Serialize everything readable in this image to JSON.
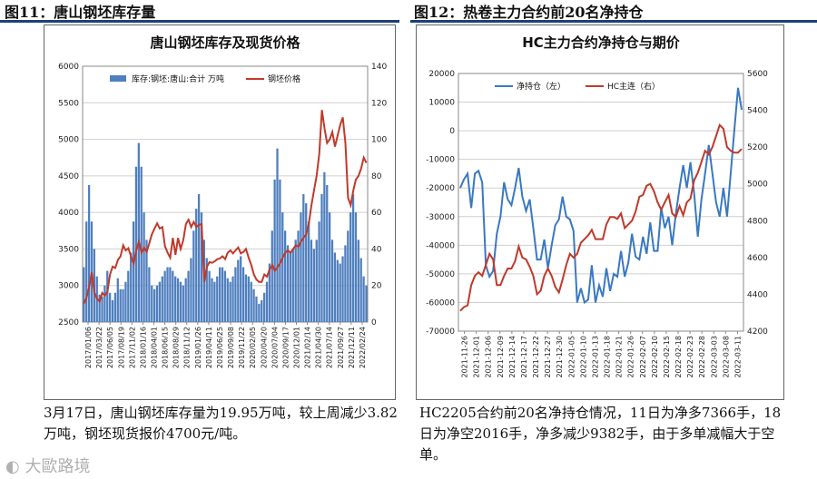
{
  "headers": {
    "left": "图11：唐山钢坯库存量",
    "right": "图12：热卷主力合约前20名净持仓"
  },
  "captions": {
    "left": "3月17日，唐山钢坯库存量为19.95万吨，较上周减少3.82万吨，钢坯现货报价4700元/吨。",
    "right": "HC2205合约前20名净持仓情况，11日为净多7366手，18日为净空2016手，净多减少9382手，由于多单减幅大于空单。"
  },
  "watermark": "大歐路境",
  "colors": {
    "bar": "#4f7fbf",
    "line_red": "#c0392b",
    "line_blue": "#3a78c2",
    "accent_rule": "#1d3f7a"
  },
  "chart_data": [
    {
      "type": "bar+line",
      "title": "唐山钢坯库存及现货价格",
      "legend": [
        "库存:钢坯:唐山:合计 万吨",
        "钢坯价格"
      ],
      "legend_placement": "top",
      "y_left": {
        "ylim": [
          2500,
          6000
        ],
        "ticks": [
          2500,
          3000,
          3500,
          4000,
          4500,
          5000,
          5500,
          6000
        ]
      },
      "y_right": {
        "ylim": [
          0,
          140
        ],
        "ticks": [
          0,
          20,
          40,
          60,
          80,
          100,
          120,
          140
        ]
      },
      "x_tick_labels": [
        "2017/01/06",
        "2017/03/22",
        "2017/06/05",
        "2017/08/19",
        "2017/11/02",
        "2018/01/16",
        "2018/04/01",
        "2018/06/15",
        "2018/08/29",
        "2018/11/12",
        "2019/01/26",
        "2019/04/11",
        "2019/06/25",
        "2019/09/08",
        "2019/11/22",
        "2020/02/05",
        "2020/04/20",
        "2020/07/04",
        "2020/09/17",
        "2020/12/01",
        "2021/02/14",
        "2021/04/30",
        "2021/07/14",
        "2021/09/27",
        "2021/12/11",
        "2022/02/24"
      ],
      "series": [
        {
          "name": "库存:钢坯:唐山:合计 万吨",
          "axis": "right",
          "kind": "bar",
          "values": [
            30,
            55,
            75,
            55,
            40,
            25,
            15,
            14,
            20,
            28,
            16,
            12,
            16,
            24,
            18,
            18,
            22,
            28,
            38,
            55,
            85,
            98,
            85,
            60,
            45,
            30,
            20,
            18,
            20,
            22,
            25,
            28,
            30,
            30,
            28,
            25,
            24,
            22,
            20,
            24,
            28,
            35,
            50,
            62,
            70,
            60,
            45,
            35,
            28,
            24,
            22,
            25,
            30,
            30,
            28,
            24,
            22,
            25,
            30,
            34,
            36,
            30,
            26,
            25,
            22,
            18,
            14,
            10,
            12,
            16,
            22,
            32,
            50,
            78,
            95,
            78,
            60,
            50,
            42,
            38,
            40,
            45,
            50,
            60,
            70,
            65,
            55,
            45,
            40,
            45,
            55,
            70,
            82,
            75,
            60,
            45,
            38,
            34,
            32,
            36,
            42,
            50,
            60,
            70,
            60,
            45,
            35,
            25,
            20
          ]
        },
        {
          "name": "钢坯价格",
          "axis": "left",
          "kind": "line",
          "values": [
            2750,
            2830,
            2980,
            3180,
            2900,
            2820,
            2780,
            2900,
            2860,
            2920,
            3150,
            3260,
            3240,
            3350,
            3400,
            3550,
            3480,
            3510,
            3400,
            3300,
            3480,
            3600,
            3450,
            3520,
            3460,
            3580,
            3700,
            3780,
            3850,
            3780,
            3800,
            3540,
            3450,
            3380,
            3650,
            3420,
            3650,
            3500,
            3620,
            3840,
            3900,
            3800,
            3870,
            3800,
            3830,
            3840,
            3050,
            3250,
            3320,
            3310,
            3330,
            3360,
            3370,
            3400,
            3360,
            3450,
            3480,
            3440,
            3480,
            3520,
            3440,
            3460,
            3500,
            3380,
            3280,
            3150,
            3080,
            3050,
            3050,
            3150,
            3120,
            3220,
            3280,
            3200,
            3250,
            3300,
            3380,
            3450,
            3480,
            3450,
            3500,
            3550,
            3530,
            3600,
            3650,
            3700,
            3850,
            4100,
            4300,
            4500,
            4800,
            5400,
            5150,
            4950,
            5000,
            5100,
            4900,
            5050,
            5200,
            5300,
            4950,
            4200,
            4100,
            4300,
            4450,
            4500,
            4600,
            4750,
            4680
          ]
        }
      ]
    },
    {
      "type": "line",
      "title": "HC主力合约净持仓与期价",
      "legend": [
        "净持仓（左）",
        "HC主连（右）"
      ],
      "legend_placement": "top-left",
      "y_left": {
        "ylim": [
          -70000,
          20000
        ],
        "ticks": [
          -70000,
          -60000,
          -50000,
          -40000,
          -30000,
          -20000,
          -10000,
          0,
          10000,
          20000
        ]
      },
      "y_right": {
        "ylim": [
          4200,
          5600
        ],
        "ticks": [
          4200,
          4400,
          4600,
          4800,
          5000,
          5200,
          5400,
          5600
        ]
      },
      "x_tick_labels": [
        "2021-11-26",
        "2021-12-01",
        "2021-12-06",
        "2021-12-09",
        "2021-12-14",
        "2021-12-17",
        "2021-12-22",
        "2021-12-27",
        "2021-12-30",
        "2022-01-05",
        "2022-01-10",
        "2022-01-13",
        "2022-01-18",
        "2022-01-21",
        "2022-01-26",
        "2022-02-07",
        "2022-02-10",
        "2022-02-15",
        "2022-02-18",
        "2022-02-23",
        "2022-02-28",
        "2022-03-03",
        "2022-03-08",
        "2022-03-11"
      ],
      "series": [
        {
          "name": "净持仓（左）",
          "axis": "left",
          "values": [
            -20000,
            -17000,
            -15000,
            -27000,
            -15000,
            -14000,
            -18000,
            -47000,
            -51000,
            -49000,
            -36000,
            -30000,
            -18000,
            -24000,
            -26000,
            -20000,
            -13000,
            -23000,
            -28000,
            -24000,
            -34000,
            -45000,
            -45000,
            -38000,
            -48000,
            -40000,
            -33000,
            -31000,
            -23000,
            -30000,
            -31000,
            -35000,
            -60000,
            -55000,
            -60000,
            -59000,
            -47000,
            -60000,
            -54000,
            -58000,
            -48000,
            -56000,
            -50000,
            -51000,
            -42000,
            -51000,
            -46000,
            -36000,
            -44000,
            -45000,
            -37000,
            -43000,
            -32000,
            -42000,
            -42000,
            -27000,
            -34000,
            -30000,
            -40000,
            -29000,
            -20000,
            -12000,
            -20000,
            -11000,
            -22000,
            -37000,
            -24000,
            -15000,
            -5000,
            -15000,
            -25000,
            -30000,
            -20000,
            -30000,
            -15000,
            0,
            15000,
            7366
          ]
        },
        {
          "name": "HC主连（右）",
          "axis": "right",
          "values": [
            4310,
            4330,
            4340,
            4450,
            4500,
            4520,
            4500,
            4560,
            4620,
            4590,
            4450,
            4450,
            4500,
            4540,
            4540,
            4580,
            4660,
            4600,
            4590,
            4550,
            4500,
            4400,
            4420,
            4500,
            4540,
            4500,
            4440,
            4410,
            4480,
            4560,
            4620,
            4600,
            4620,
            4680,
            4700,
            4720,
            4750,
            4700,
            4700,
            4700,
            4780,
            4820,
            4820,
            4810,
            4840,
            4760,
            4780,
            4800,
            4850,
            4930,
            4940,
            4990,
            5000,
            4960,
            4900,
            4860,
            4900,
            4940,
            4840,
            4820,
            4880,
            4830,
            4900,
            4920,
            5020,
            5060,
            5120,
            5180,
            5160,
            5200,
            5260,
            5320,
            5300,
            5200,
            5180,
            5170,
            5170,
            5190
          ]
        }
      ]
    }
  ]
}
